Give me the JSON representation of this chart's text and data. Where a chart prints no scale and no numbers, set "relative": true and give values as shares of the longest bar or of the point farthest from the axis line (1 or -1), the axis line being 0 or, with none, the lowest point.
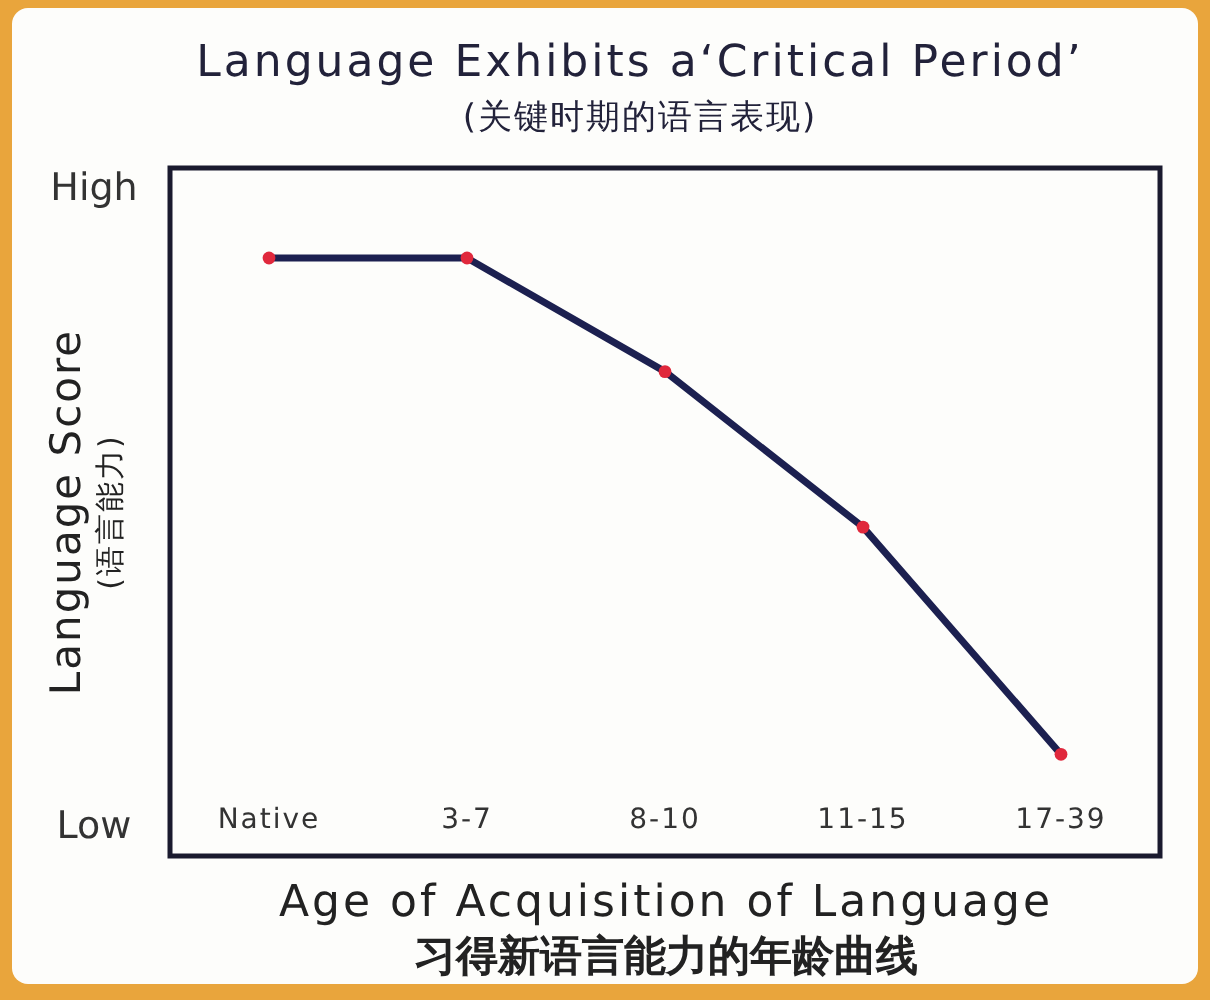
{
  "chart_data": {
    "type": "line",
    "title": "Language Exhibits a‘Critical Period’",
    "subtitle": "(关键时期的语言表现)",
    "xlabel": "Age of Acquisition of Language\n习得新语言能力的年龄曲线",
    "ylabel": "Language Score\n(语言能力)",
    "categories": [
      "Native",
      "3-7",
      "8-10",
      "11-15",
      "17-39"
    ],
    "series": [
      {
        "color": "#1c2050",
        "values": [
          1,
          1,
          0.81,
          0.55,
          0.17
        ]
      }
    ],
    "relative": true,
    "annotations": [
      "High",
      "Low"
    ],
    "marker": "circle",
    "line_style": "solid"
  }
}
